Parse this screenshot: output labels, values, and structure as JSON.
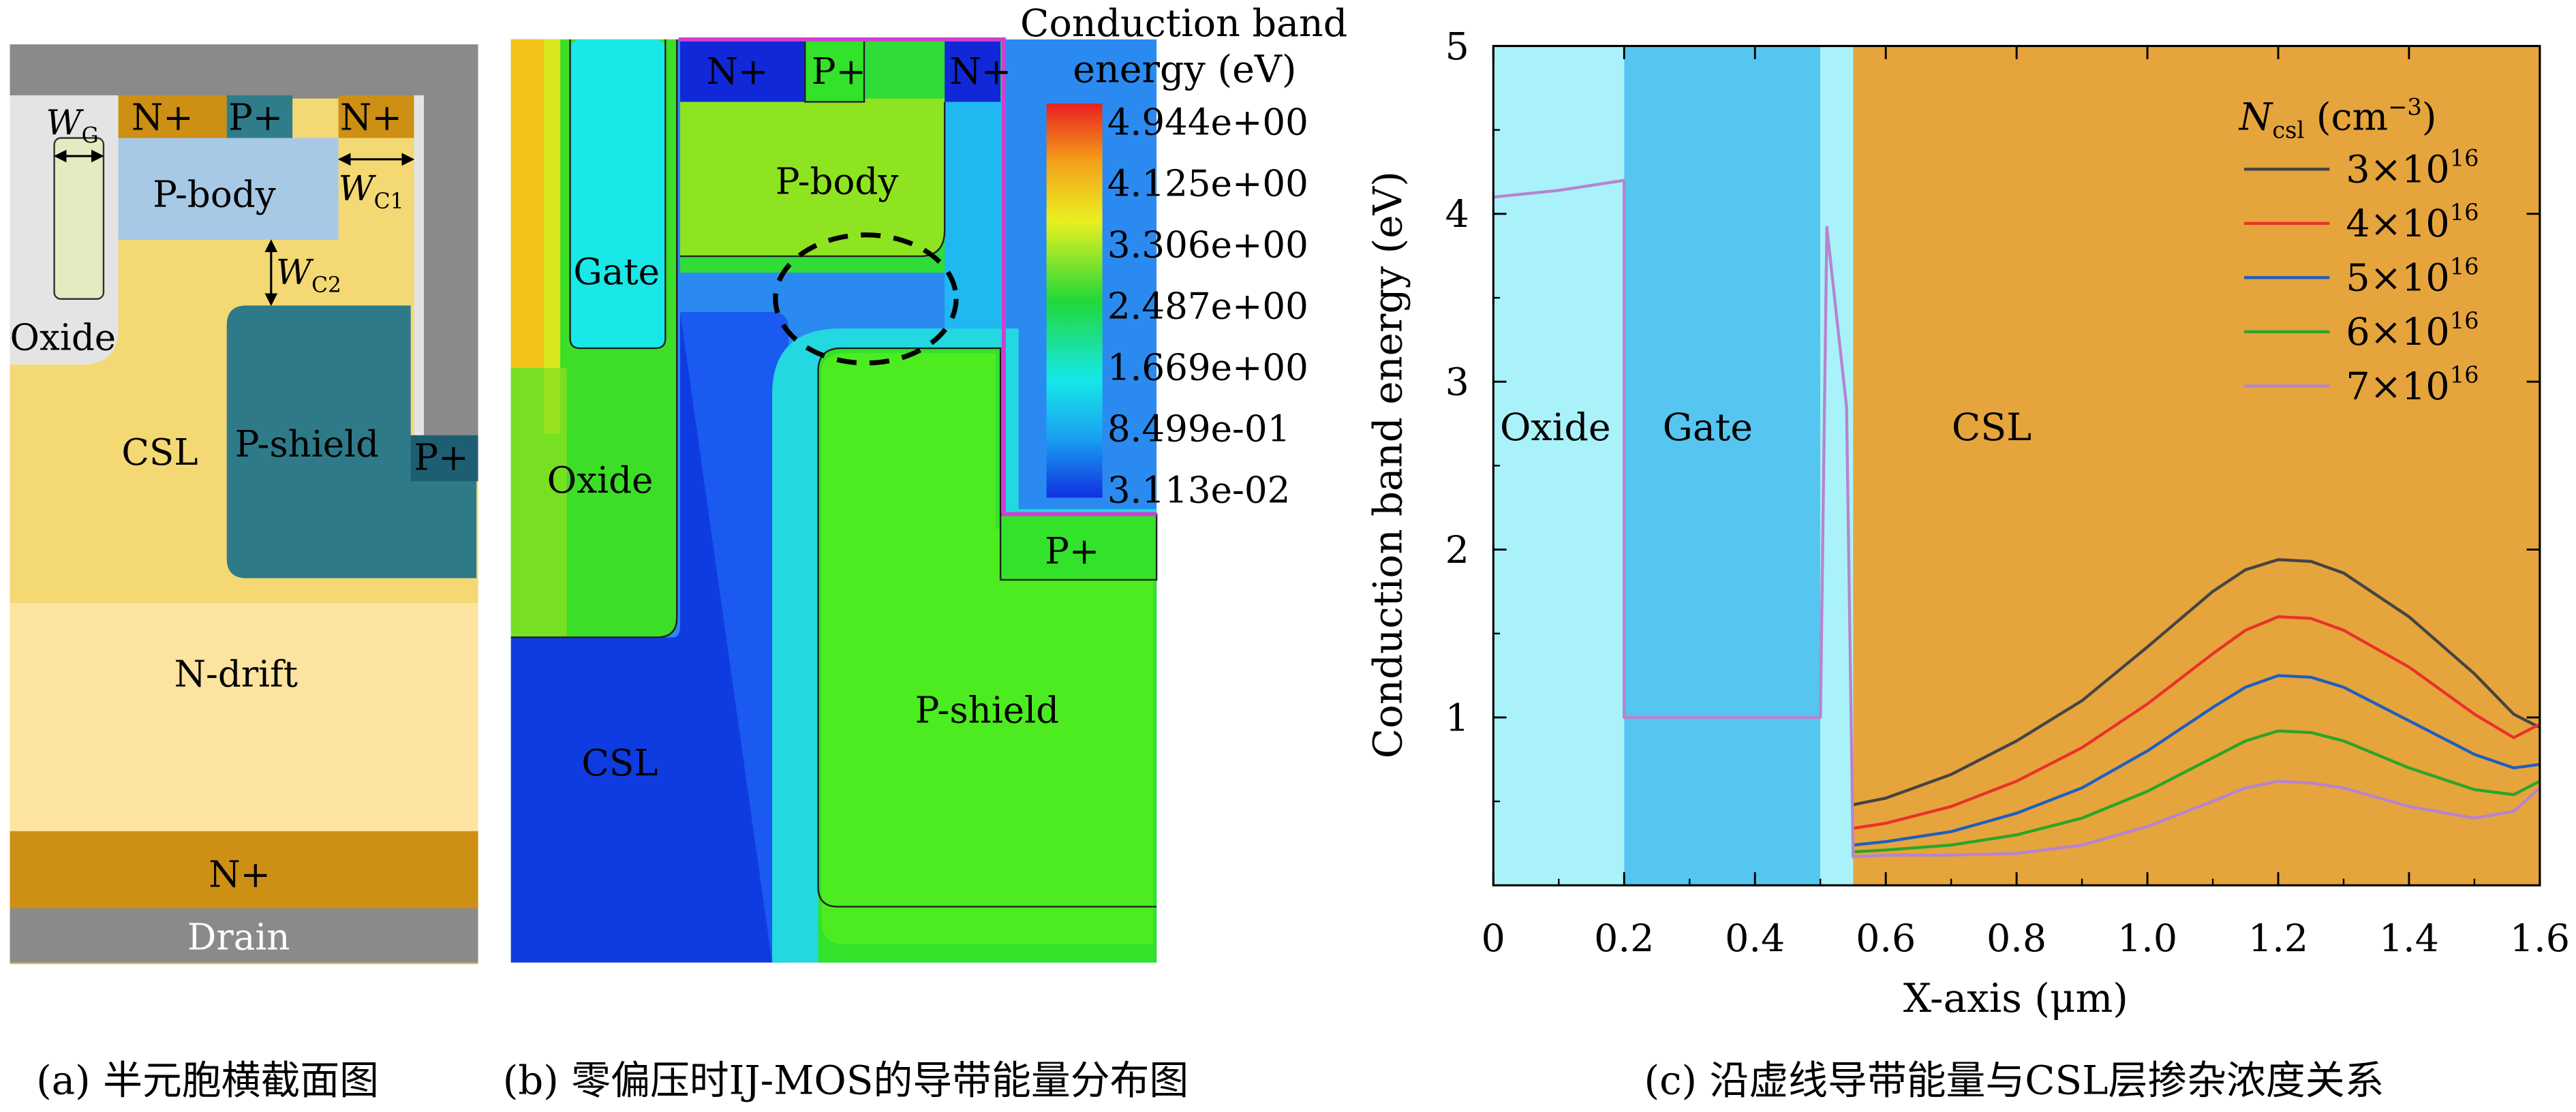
{
  "panel_a": {
    "labels": {
      "n_plus_1": "N+",
      "p_plus_1": "P+",
      "n_plus_2": "N+",
      "wg": "W",
      "wg_sub": "G",
      "wc1": "W",
      "wc1_sub": "C1",
      "wc2": "W",
      "wc2_sub": "C2",
      "p_body": "P-body",
      "oxide": "Oxide",
      "csl": "CSL",
      "p_shield": "P-shield",
      "p_plus_side": "P+",
      "n_drift": "N-drift",
      "n_plus_bottom": "N+",
      "drain": "Drain"
    },
    "caption": "(a) 半元胞横截面图"
  },
  "panel_b": {
    "labels": {
      "n_plus_1": "N+",
      "p_plus_1": "P+",
      "n_plus_2": "N+",
      "p_body": "P-body",
      "gate": "Gate",
      "oxide": "Oxide",
      "csl": "CSL",
      "p_shield": "P-shield",
      "p_plus_side": "P+"
    },
    "colorbar": {
      "title_line1": "Conduction band",
      "title_line2": "energy (eV)",
      "ticks": [
        "4.944e+00",
        "4.125e+00",
        "3.306e+00",
        "2.487e+00",
        "1.669e+00",
        "8.499e-01",
        "3.113e-02"
      ]
    },
    "caption": "(b) 零偏压时IJ-MOS的导带能量分布图"
  },
  "panel_c": {
    "caption": "(c) 沿虚线导带能量与CSL层掺杂浓度关系",
    "region_labels": {
      "oxide": "Oxide",
      "gate": "Gate",
      "csl": "CSL"
    },
    "legend_title": "N",
    "legend_title_sub": "csl",
    "legend_title_unit": " (cm",
    "legend_title_exp": "−3",
    "legend_title_close": ")"
  },
  "chart_data": {
    "type": "line",
    "xlabel": "X-axis (μm)",
    "ylabel": "Conduction band energy (eV)",
    "xlim": [
      0,
      1.6
    ],
    "ylim": [
      0,
      5
    ],
    "xticks": [
      "0",
      "0.2",
      "0.4",
      "0.6",
      "0.8",
      "1.0",
      "1.2",
      "1.4",
      "1.6"
    ],
    "yticks": [
      "1",
      "2",
      "3",
      "4",
      "5"
    ],
    "legend_position": "top-right",
    "series": [
      {
        "name": "3×10^16",
        "mantissa": "3×10",
        "exp": "16",
        "color": "#444444",
        "points": [
          [
            0.55,
            0.48
          ],
          [
            0.6,
            0.52
          ],
          [
            0.7,
            0.66
          ],
          [
            0.8,
            0.86
          ],
          [
            0.9,
            1.1
          ],
          [
            1.0,
            1.42
          ],
          [
            1.1,
            1.75
          ],
          [
            1.15,
            1.88
          ],
          [
            1.2,
            1.94
          ],
          [
            1.25,
            1.93
          ],
          [
            1.3,
            1.86
          ],
          [
            1.4,
            1.6
          ],
          [
            1.5,
            1.26
          ],
          [
            1.56,
            1.02
          ],
          [
            1.6,
            0.94
          ]
        ]
      },
      {
        "name": "4×10^16",
        "mantissa": "4×10",
        "exp": "16",
        "color": "#e8322b",
        "points": [
          [
            0.55,
            0.34
          ],
          [
            0.6,
            0.37
          ],
          [
            0.7,
            0.47
          ],
          [
            0.8,
            0.62
          ],
          [
            0.9,
            0.82
          ],
          [
            1.0,
            1.08
          ],
          [
            1.1,
            1.38
          ],
          [
            1.15,
            1.52
          ],
          [
            1.2,
            1.6
          ],
          [
            1.25,
            1.59
          ],
          [
            1.3,
            1.52
          ],
          [
            1.4,
            1.3
          ],
          [
            1.5,
            1.02
          ],
          [
            1.56,
            0.88
          ],
          [
            1.6,
            0.96
          ]
        ]
      },
      {
        "name": "5×10^16",
        "mantissa": "5×10",
        "exp": "16",
        "color": "#1f5fbf",
        "points": [
          [
            0.55,
            0.24
          ],
          [
            0.6,
            0.26
          ],
          [
            0.7,
            0.32
          ],
          [
            0.8,
            0.43
          ],
          [
            0.9,
            0.58
          ],
          [
            1.0,
            0.8
          ],
          [
            1.1,
            1.06
          ],
          [
            1.15,
            1.18
          ],
          [
            1.2,
            1.25
          ],
          [
            1.25,
            1.24
          ],
          [
            1.3,
            1.18
          ],
          [
            1.4,
            0.98
          ],
          [
            1.5,
            0.78
          ],
          [
            1.56,
            0.7
          ],
          [
            1.6,
            0.72
          ]
        ]
      },
      {
        "name": "6×10^16",
        "mantissa": "6×10",
        "exp": "16",
        "color": "#2aa52a",
        "points": [
          [
            0.55,
            0.2
          ],
          [
            0.6,
            0.21
          ],
          [
            0.7,
            0.24
          ],
          [
            0.8,
            0.3
          ],
          [
            0.9,
            0.4
          ],
          [
            1.0,
            0.56
          ],
          [
            1.1,
            0.76
          ],
          [
            1.15,
            0.86
          ],
          [
            1.2,
            0.92
          ],
          [
            1.25,
            0.91
          ],
          [
            1.3,
            0.86
          ],
          [
            1.4,
            0.7
          ],
          [
            1.5,
            0.57
          ],
          [
            1.56,
            0.54
          ],
          [
            1.6,
            0.62
          ]
        ]
      },
      {
        "name": "7×10^16",
        "mantissa": "7×10",
        "exp": "16",
        "color": "#b784cf",
        "points": [
          [
            0.0,
            4.1
          ],
          [
            0.1,
            4.14
          ],
          [
            0.2,
            4.2
          ],
          [
            0.2,
            1.0
          ],
          [
            0.5,
            1.0
          ],
          [
            0.51,
            3.92
          ],
          [
            0.54,
            2.85
          ],
          [
            0.55,
            0.17
          ],
          [
            0.6,
            0.18
          ],
          [
            0.7,
            0.18
          ],
          [
            0.8,
            0.19
          ],
          [
            0.9,
            0.24
          ],
          [
            1.0,
            0.35
          ],
          [
            1.1,
            0.5
          ],
          [
            1.15,
            0.58
          ],
          [
            1.2,
            0.62
          ],
          [
            1.25,
            0.61
          ],
          [
            1.3,
            0.58
          ],
          [
            1.4,
            0.47
          ],
          [
            1.5,
            0.4
          ],
          [
            1.56,
            0.44
          ],
          [
            1.6,
            0.58
          ]
        ]
      }
    ]
  }
}
